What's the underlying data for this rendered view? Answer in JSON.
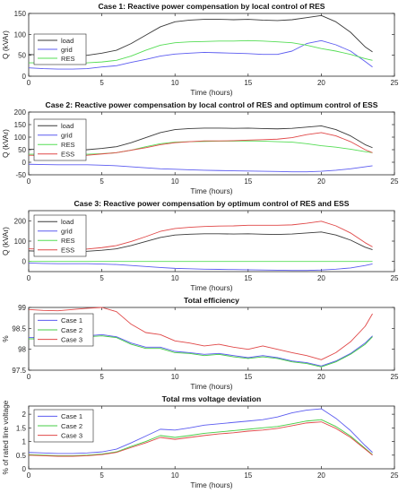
{
  "colors": {
    "load": "#3a3a3a",
    "grid": "#5c5cf0",
    "RES": "#55dd55",
    "ESS": "#e04848",
    "Case 1": "#5c5cf0",
    "Case 2": "#44cc44",
    "Case 3": "#e04848"
  },
  "chart_data": [
    {
      "type": "line",
      "title": "Case 1: Reactive power compensation by local control of RES",
      "xlabel": "Time (hours)",
      "ylabel": "Q (kVAr)",
      "xlim": [
        0,
        25
      ],
      "ylim": [
        0,
        150
      ],
      "xticks": [
        "0",
        "5",
        "10",
        "15",
        "20",
        "25"
      ],
      "yticks": [
        "0",
        "50",
        "100",
        "150"
      ],
      "legend_position": "left",
      "x": [
        0,
        1,
        2,
        3,
        4,
        5,
        6,
        7,
        8,
        9,
        10,
        11,
        12,
        13,
        14,
        15,
        16,
        17,
        18,
        19,
        20,
        21,
        22,
        23,
        23.5
      ],
      "series": [
        {
          "name": "load",
          "values": [
            52,
            50,
            48,
            48,
            50,
            55,
            62,
            78,
            98,
            118,
            130,
            134,
            136,
            136,
            135,
            136,
            134,
            133,
            135,
            140,
            145,
            130,
            105,
            70,
            58
          ]
        },
        {
          "name": "grid",
          "values": [
            20,
            18,
            17,
            17,
            18,
            22,
            25,
            33,
            40,
            48,
            53,
            55,
            57,
            56,
            55,
            54,
            52,
            52,
            60,
            78,
            85,
            75,
            60,
            35,
            22
          ]
        },
        {
          "name": "RES",
          "values": [
            32,
            32,
            31,
            31,
            32,
            34,
            38,
            48,
            62,
            74,
            80,
            82,
            83,
            84,
            84,
            85,
            84,
            82,
            80,
            74,
            66,
            60,
            52,
            42,
            38
          ]
        }
      ]
    },
    {
      "type": "line",
      "title": "Case 2: Reactive power compensation by local control of RES and optimum control of ESS",
      "xlabel": "Time (hours)",
      "ylabel": "Q (kVAr)",
      "xlim": [
        0,
        25
      ],
      "ylim": [
        -50,
        200
      ],
      "xticks": [
        "0",
        "5",
        "10",
        "15",
        "20",
        "25"
      ],
      "yticks": [
        "-50",
        "0",
        "50",
        "100",
        "150",
        "200"
      ],
      "legend_position": "left",
      "x": [
        0,
        1,
        2,
        3,
        4,
        5,
        6,
        7,
        8,
        9,
        10,
        11,
        12,
        13,
        14,
        15,
        16,
        17,
        18,
        19,
        20,
        21,
        22,
        23,
        23.5
      ],
      "series": [
        {
          "name": "load",
          "values": [
            52,
            50,
            48,
            48,
            50,
            55,
            62,
            78,
            98,
            118,
            130,
            134,
            136,
            136,
            135,
            136,
            134,
            133,
            135,
            140,
            145,
            130,
            105,
            70,
            58
          ]
        },
        {
          "name": "grid",
          "values": [
            -8,
            -9,
            -10,
            -10,
            -10,
            -12,
            -14,
            -18,
            -22,
            -26,
            -28,
            -30,
            -32,
            -33,
            -34,
            -35,
            -36,
            -37,
            -38,
            -38,
            -36,
            -32,
            -26,
            -18,
            -14
          ]
        },
        {
          "name": "RES",
          "values": [
            32,
            32,
            31,
            31,
            32,
            34,
            38,
            48,
            62,
            74,
            80,
            82,
            83,
            84,
            84,
            85,
            84,
            82,
            80,
            74,
            66,
            60,
            52,
            42,
            38
          ]
        },
        {
          "name": "ESS",
          "values": [
            28,
            27,
            27,
            27,
            28,
            33,
            38,
            48,
            58,
            70,
            78,
            82,
            85,
            85,
            86,
            88,
            90,
            92,
            98,
            110,
            118,
            105,
            82,
            50,
            38
          ]
        }
      ]
    },
    {
      "type": "line",
      "title": "Case 3: Reactive power compensation by optimum control of RES and ESS",
      "xlabel": "Time (hours)",
      "ylabel": "Q (kVAr)",
      "xlim": [
        0,
        25
      ],
      "ylim": [
        -50,
        250
      ],
      "xticks": [
        "0",
        "5",
        "10",
        "15",
        "20",
        "25"
      ],
      "yticks": [
        "0",
        "100",
        "200"
      ],
      "legend_position": "left",
      "x": [
        0,
        1,
        2,
        3,
        4,
        5,
        6,
        7,
        8,
        9,
        10,
        11,
        12,
        13,
        14,
        15,
        16,
        17,
        18,
        19,
        20,
        21,
        22,
        23,
        23.5
      ],
      "series": [
        {
          "name": "load",
          "values": [
            52,
            50,
            48,
            48,
            50,
            55,
            62,
            78,
            98,
            118,
            130,
            134,
            136,
            136,
            135,
            136,
            134,
            133,
            135,
            140,
            145,
            130,
            105,
            70,
            58
          ]
        },
        {
          "name": "grid",
          "values": [
            -8,
            -10,
            -11,
            -11,
            -11,
            -13,
            -15,
            -20,
            -25,
            -30,
            -34,
            -36,
            -38,
            -39,
            -40,
            -41,
            -42,
            -43,
            -44,
            -44,
            -42,
            -38,
            -32,
            -20,
            -12
          ]
        },
        {
          "name": "RES",
          "values": [
            0,
            0,
            0,
            0,
            0,
            0,
            0,
            0,
            0,
            0,
            0,
            0,
            0,
            0,
            0,
            0,
            0,
            0,
            0,
            0,
            0,
            0,
            0,
            0,
            0
          ]
        },
        {
          "name": "ESS",
          "values": [
            62,
            60,
            59,
            59,
            61,
            68,
            78,
            98,
            122,
            148,
            162,
            168,
            172,
            174,
            175,
            178,
            178,
            178,
            180,
            188,
            198,
            175,
            140,
            92,
            72
          ]
        }
      ]
    },
    {
      "type": "line",
      "title": "Total efficiency",
      "xlabel": "Time (hours)",
      "ylabel": "%",
      "xlim": [
        0,
        25
      ],
      "ylim": [
        97.5,
        99
      ],
      "xticks": [
        "0",
        "5",
        "10",
        "15",
        "20",
        "25"
      ],
      "yticks": [
        "97.5",
        "98",
        "98.5",
        "99"
      ],
      "legend_position": "left",
      "x": [
        0,
        1,
        2,
        3,
        4,
        5,
        6,
        7,
        8,
        9,
        10,
        11,
        12,
        13,
        14,
        15,
        16,
        17,
        18,
        19,
        20,
        21,
        22,
        23,
        23.5
      ],
      "series": [
        {
          "name": "Case 1",
          "values": [
            98.28,
            98.28,
            98.3,
            98.3,
            98.32,
            98.35,
            98.3,
            98.15,
            98.05,
            98.05,
            97.95,
            97.92,
            97.88,
            97.9,
            97.85,
            97.8,
            97.85,
            97.8,
            97.72,
            97.68,
            97.6,
            97.72,
            97.9,
            98.15,
            98.32
          ]
        },
        {
          "name": "Case 2",
          "values": [
            98.25,
            98.25,
            98.27,
            98.28,
            98.3,
            98.32,
            98.28,
            98.12,
            98.02,
            98.02,
            97.92,
            97.9,
            97.85,
            97.88,
            97.82,
            97.78,
            97.82,
            97.78,
            97.7,
            97.66,
            97.58,
            97.7,
            97.88,
            98.12,
            98.3
          ]
        },
        {
          "name": "Case 3",
          "values": [
            98.95,
            98.93,
            98.92,
            98.95,
            98.98,
            99.0,
            98.9,
            98.6,
            98.4,
            98.35,
            98.2,
            98.15,
            98.08,
            98.12,
            98.05,
            98.0,
            98.08,
            98.0,
            97.92,
            97.85,
            97.75,
            97.92,
            98.18,
            98.55,
            98.85
          ]
        }
      ]
    },
    {
      "type": "line",
      "title": "Total rms voltage deviation",
      "xlabel": "Time (hours)",
      "ylabel": "% of rated line voltage",
      "xlim": [
        0,
        25
      ],
      "ylim": [
        0,
        2.3
      ],
      "xticks": [
        "0",
        "5",
        "10",
        "15",
        "20",
        "25"
      ],
      "yticks": [
        "0",
        "0.5",
        "1",
        "1.5",
        "2"
      ],
      "legend_position": "left",
      "x": [
        0,
        1,
        2,
        3,
        4,
        5,
        6,
        7,
        8,
        9,
        10,
        11,
        12,
        13,
        14,
        15,
        16,
        17,
        18,
        19,
        20,
        21,
        22,
        23,
        23.5
      ],
      "series": [
        {
          "name": "Case 1",
          "values": [
            0.6,
            0.58,
            0.56,
            0.56,
            0.58,
            0.62,
            0.72,
            0.95,
            1.2,
            1.45,
            1.42,
            1.5,
            1.6,
            1.65,
            1.7,
            1.75,
            1.8,
            1.9,
            2.05,
            2.15,
            2.2,
            1.85,
            1.4,
            0.85,
            0.6
          ]
        },
        {
          "name": "Case 2",
          "values": [
            0.52,
            0.5,
            0.48,
            0.48,
            0.5,
            0.54,
            0.62,
            0.82,
            1.0,
            1.22,
            1.15,
            1.22,
            1.3,
            1.35,
            1.4,
            1.45,
            1.5,
            1.55,
            1.65,
            1.75,
            1.8,
            1.55,
            1.2,
            0.75,
            0.52
          ]
        },
        {
          "name": "Case 3",
          "values": [
            0.5,
            0.48,
            0.46,
            0.46,
            0.48,
            0.52,
            0.6,
            0.78,
            0.95,
            1.15,
            1.08,
            1.15,
            1.22,
            1.28,
            1.32,
            1.38,
            1.42,
            1.48,
            1.58,
            1.68,
            1.72,
            1.48,
            1.15,
            0.72,
            0.5
          ]
        }
      ]
    }
  ]
}
